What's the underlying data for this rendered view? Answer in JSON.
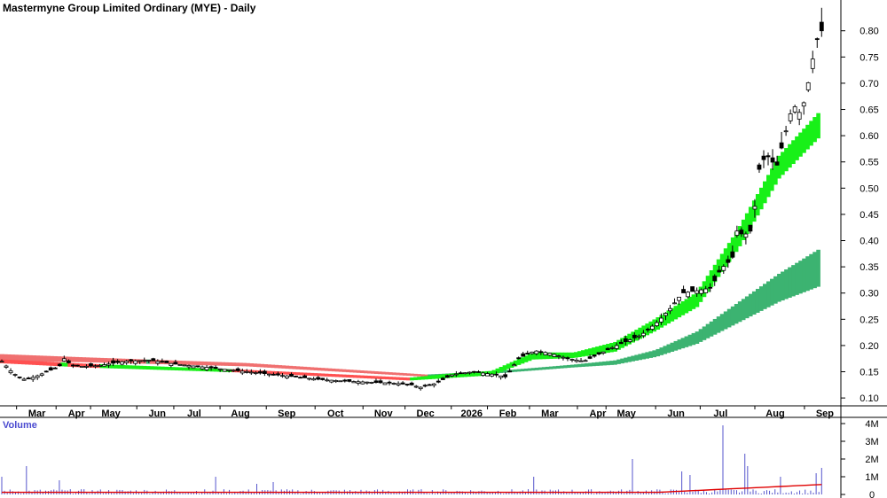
{
  "chart_data": {
    "type": "candlestick",
    "title": "Mastermyne Group Limited Ordinary (MYE) - Daily",
    "y_ticks": [
      "0.80",
      "0.75",
      "0.70",
      "0.65",
      "0.60",
      "0.55",
      "0.50",
      "0.45",
      "0.40",
      "0.35",
      "0.30",
      "0.25",
      "0.20",
      "0.15",
      "0.10"
    ],
    "y_tick_values": [
      0.8,
      0.75,
      0.7,
      0.65,
      0.6,
      0.55,
      0.5,
      0.45,
      0.4,
      0.35,
      0.3,
      0.25,
      0.2,
      0.15,
      0.1
    ],
    "ylim": [
      0.085,
      0.835
    ],
    "x_ticks": [
      {
        "label": "Mar",
        "t": 0.045
      },
      {
        "label": "Apr",
        "t": 0.092
      },
      {
        "label": "May",
        "t": 0.133
      },
      {
        "label": "Jun",
        "t": 0.188
      },
      {
        "label": "Jul",
        "t": 0.232
      },
      {
        "label": "Aug",
        "t": 0.287
      },
      {
        "label": "Sep",
        "t": 0.342
      },
      {
        "label": "Oct",
        "t": 0.4
      },
      {
        "label": "Nov",
        "t": 0.457
      },
      {
        "label": "Dec",
        "t": 0.507
      },
      {
        "label": "2026",
        "t": 0.562
      },
      {
        "label": "Feb",
        "t": 0.605
      },
      {
        "label": "Mar",
        "t": 0.655
      },
      {
        "label": "Apr",
        "t": 0.712
      },
      {
        "label": "May",
        "t": 0.746
      },
      {
        "label": "Jun",
        "t": 0.805
      },
      {
        "label": "Jul",
        "t": 0.858
      },
      {
        "label": "Aug",
        "t": 0.923
      },
      {
        "label": "Sep",
        "t": 0.982
      }
    ],
    "price_anchors": [
      [
        0.0,
        0.17
      ],
      [
        0.012,
        0.15
      ],
      [
        0.025,
        0.135
      ],
      [
        0.04,
        0.14
      ],
      [
        0.055,
        0.15
      ],
      [
        0.07,
        0.16
      ],
      [
        0.076,
        0.175
      ],
      [
        0.085,
        0.162
      ],
      [
        0.1,
        0.16
      ],
      [
        0.12,
        0.162
      ],
      [
        0.15,
        0.17
      ],
      [
        0.18,
        0.172
      ],
      [
        0.21,
        0.165
      ],
      [
        0.24,
        0.16
      ],
      [
        0.27,
        0.155
      ],
      [
        0.3,
        0.15
      ],
      [
        0.33,
        0.145
      ],
      [
        0.36,
        0.14
      ],
      [
        0.39,
        0.135
      ],
      [
        0.42,
        0.132
      ],
      [
        0.45,
        0.13
      ],
      [
        0.48,
        0.128
      ],
      [
        0.5,
        0.125
      ],
      [
        0.51,
        0.12
      ],
      [
        0.53,
        0.128
      ],
      [
        0.55,
        0.145
      ],
      [
        0.575,
        0.15
      ],
      [
        0.6,
        0.145
      ],
      [
        0.615,
        0.14
      ],
      [
        0.63,
        0.175
      ],
      [
        0.65,
        0.19
      ],
      [
        0.67,
        0.185
      ],
      [
        0.69,
        0.175
      ],
      [
        0.71,
        0.17
      ],
      [
        0.73,
        0.185
      ],
      [
        0.75,
        0.2
      ],
      [
        0.78,
        0.22
      ],
      [
        0.8,
        0.245
      ],
      [
        0.815,
        0.27
      ],
      [
        0.83,
        0.3
      ],
      [
        0.85,
        0.305
      ],
      [
        0.865,
        0.31
      ],
      [
        0.875,
        0.34
      ],
      [
        0.885,
        0.36
      ],
      [
        0.89,
        0.35
      ],
      [
        0.895,
        0.42
      ],
      [
        0.905,
        0.41
      ],
      [
        0.915,
        0.42
      ],
      [
        0.925,
        0.55
      ],
      [
        0.935,
        0.56
      ],
      [
        0.945,
        0.54
      ],
      [
        0.955,
        0.6
      ],
      [
        0.965,
        0.66
      ],
      [
        0.975,
        0.64
      ],
      [
        0.985,
        0.71
      ],
      [
        0.993,
        0.78
      ],
      [
        1.0,
        0.8
      ]
    ],
    "bands": [
      {
        "name": "",
        "color_up": "#18f018",
        "color_down": "#ff5050",
        "lower": [
          [
            0,
            0.168
          ],
          [
            0.1,
            0.16
          ],
          [
            0.3,
            0.15
          ],
          [
            0.5,
            0.135
          ],
          [
            0.55,
            0.14
          ],
          [
            0.6,
            0.145
          ],
          [
            0.65,
            0.175
          ],
          [
            0.7,
            0.178
          ],
          [
            0.75,
            0.19
          ],
          [
            0.8,
            0.23
          ],
          [
            0.85,
            0.275
          ],
          [
            0.9,
            0.385
          ],
          [
            0.95,
            0.52
          ],
          [
            1.0,
            0.6
          ]
        ],
        "upper": [
          [
            0,
            0.172
          ],
          [
            0.1,
            0.164
          ],
          [
            0.3,
            0.152
          ],
          [
            0.5,
            0.137
          ],
          [
            0.55,
            0.145
          ],
          [
            0.6,
            0.15
          ],
          [
            0.65,
            0.185
          ],
          [
            0.7,
            0.185
          ],
          [
            0.75,
            0.205
          ],
          [
            0.8,
            0.25
          ],
          [
            0.85,
            0.3
          ],
          [
            0.9,
            0.42
          ],
          [
            0.95,
            0.56
          ],
          [
            1.0,
            0.645
          ]
        ]
      },
      {
        "name": "",
        "color_up": "#3cb371",
        "color_down": "#f07070",
        "lower": [
          [
            0,
            0.172
          ],
          [
            0.1,
            0.17
          ],
          [
            0.3,
            0.162
          ],
          [
            0.52,
            0.142
          ],
          [
            0.6,
            0.148
          ],
          [
            0.7,
            0.16
          ],
          [
            0.75,
            0.165
          ],
          [
            0.8,
            0.18
          ],
          [
            0.85,
            0.205
          ],
          [
            0.9,
            0.245
          ],
          [
            0.95,
            0.285
          ],
          [
            1.0,
            0.315
          ]
        ],
        "upper": [
          [
            0,
            0.182
          ],
          [
            0.1,
            0.176
          ],
          [
            0.3,
            0.165
          ],
          [
            0.52,
            0.143
          ],
          [
            0.6,
            0.149
          ],
          [
            0.7,
            0.162
          ],
          [
            0.75,
            0.17
          ],
          [
            0.8,
            0.19
          ],
          [
            0.85,
            0.225
          ],
          [
            0.9,
            0.28
          ],
          [
            0.95,
            0.335
          ],
          [
            1.0,
            0.383
          ]
        ]
      }
    ],
    "volume": {
      "label": "Volume",
      "y_ticks": [
        "4M",
        "3M",
        "2M",
        "1M",
        "0"
      ],
      "y_tick_values": [
        4,
        3,
        2,
        1,
        0
      ],
      "ylim": [
        0,
        4.2
      ],
      "spikes": [
        [
          0.0,
          1.0
        ],
        [
          0.03,
          1.6
        ],
        [
          0.07,
          0.8
        ],
        [
          0.26,
          1.0
        ],
        [
          0.31,
          0.6
        ],
        [
          0.33,
          0.7
        ],
        [
          0.65,
          1.0
        ],
        [
          0.77,
          2.0
        ],
        [
          0.83,
          1.3
        ],
        [
          0.84,
          1.1
        ],
        [
          0.88,
          3.9
        ],
        [
          0.905,
          2.3
        ],
        [
          0.91,
          1.6
        ],
        [
          0.95,
          1.0
        ],
        [
          0.993,
          1.2
        ],
        [
          1.0,
          1.5
        ]
      ],
      "avg_color": "#e00000",
      "bar_color": "#5555cc"
    }
  }
}
